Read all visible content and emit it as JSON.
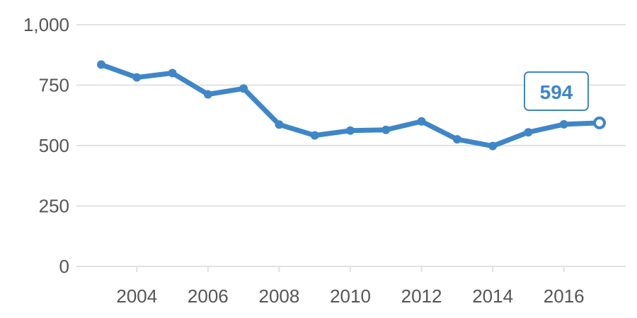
{
  "chart_data": {
    "type": "line",
    "x": [
      2003,
      2004,
      2005,
      2006,
      2007,
      2008,
      2009,
      2010,
      2011,
      2012,
      2013,
      2014,
      2015,
      2016,
      2017
    ],
    "series": [
      {
        "values": [
          835,
          782,
          800,
          712,
          736,
          587,
          542,
          562,
          565,
          600,
          526,
          498,
          555,
          588,
          594
        ]
      }
    ],
    "ylim": [
      0,
      1000
    ],
    "y_ticks": [
      0,
      250,
      500,
      750,
      1000
    ],
    "y_tick_labels": [
      "0",
      "250",
      "500",
      "750",
      "1,000"
    ],
    "x_ticks": [
      2004,
      2006,
      2008,
      2010,
      2012,
      2014,
      2016
    ],
    "x_tick_labels": [
      "2004",
      "2006",
      "2008",
      "2010",
      "2012",
      "2014",
      "2016"
    ],
    "grid": true,
    "line_color": "#3f86c8",
    "last_value_label": "594"
  }
}
